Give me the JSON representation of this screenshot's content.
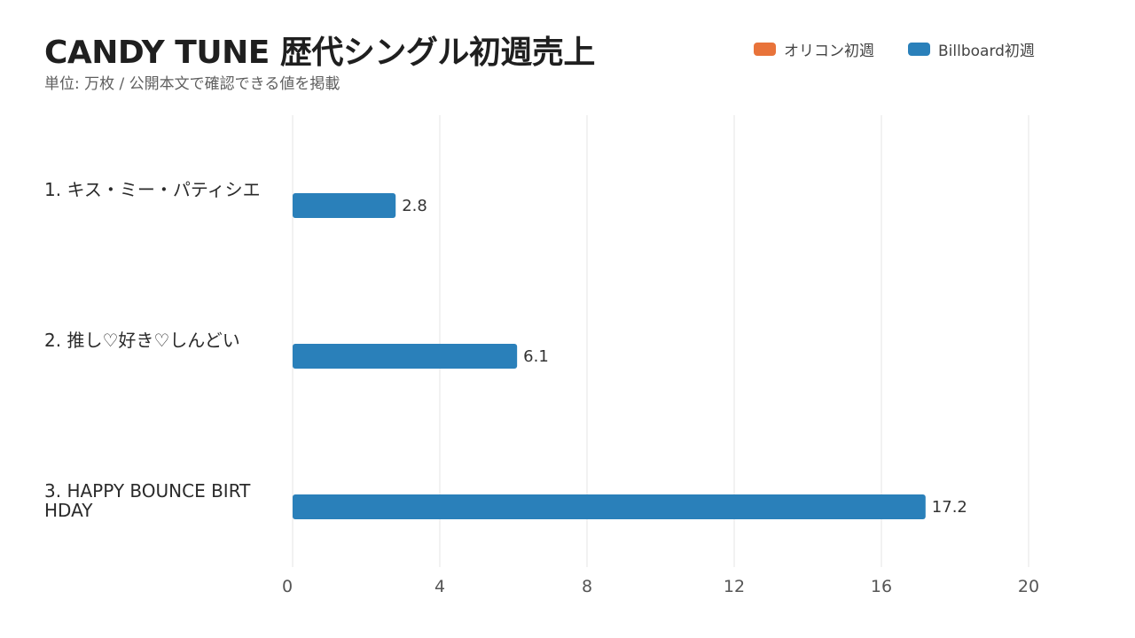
{
  "header": {
    "title": "CANDY TUNE 歴代シングル初週売上",
    "subtitle": "単位: 万枚 / 公開本文で確認できる値を掲載"
  },
  "colors": {
    "oricon": "#E8733A",
    "billboard": "#2A80BA",
    "grid": "#E6E6E6"
  },
  "legend": [
    {
      "label": "オリコン初週",
      "color": "#E8733A"
    },
    {
      "label": "Billboard初週",
      "color": "#2A80BA"
    }
  ],
  "chart_data": {
    "type": "bar",
    "orientation": "horizontal",
    "title": "CANDY TUNE 歴代シングル初週売上",
    "subtitle": "単位: 万枚 / 公開本文で確認できる値を掲載",
    "categories": [
      [
        "1. キス・ミー・パティシエ"
      ],
      [
        "2. 推し♡好き♡しんどい"
      ],
      [
        "3. HAPPY BOUNCE BIRT",
        "HDAY"
      ]
    ],
    "series": [
      {
        "name": "オリコン初週",
        "color": "#E8733A",
        "values": [
          null,
          null,
          null
        ]
      },
      {
        "name": "Billboard初週",
        "color": "#2A80BA",
        "values": [
          2.8,
          6.1,
          17.2
        ]
      }
    ],
    "value_labels": [
      "2.8",
      "6.1",
      "17.2"
    ],
    "xlim": [
      0,
      20
    ],
    "xticks": [
      0,
      4,
      8,
      12,
      16,
      20
    ],
    "grid": true,
    "legend_position": "top-right"
  }
}
